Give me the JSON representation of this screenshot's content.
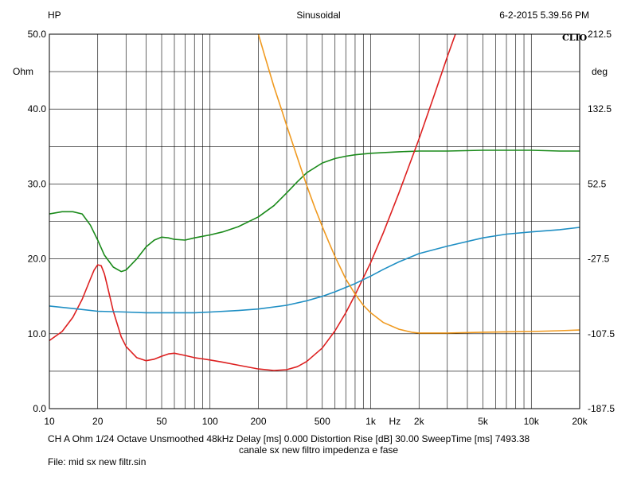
{
  "header": {
    "left": "HP",
    "center": "Sinusoidal",
    "right": "6-2-2015 5.39.56 PM",
    "brand": "CLIO"
  },
  "footer": {
    "info": "CH A   Ohm    1/24 Octave    Unsmoothed    48kHz    Delay [ms] 0.000    Distortion Rise [dB] 30.00    SweepTime [ms] 7493.38",
    "caption": "canale sx new filtro impedenza e fase",
    "file": "File: mid sx new filtr.sin"
  },
  "colors": {
    "background": "#ffffff",
    "grid": "#000000",
    "green": "#1a8a1a",
    "red": "#dd2020",
    "blue": "#1f8fc4",
    "orange": "#f09a20"
  },
  "chart_data": {
    "type": "line",
    "x_scale": "log",
    "xlim": [
      10,
      20000
    ],
    "x_ticks": [
      {
        "value": 10,
        "label": "10"
      },
      {
        "value": 20,
        "label": "20"
      },
      {
        "value": 50,
        "label": "50"
      },
      {
        "value": 100,
        "label": "100"
      },
      {
        "value": 200,
        "label": "200"
      },
      {
        "value": 500,
        "label": "500"
      },
      {
        "value": 1000,
        "label": "1k"
      },
      {
        "value": 2000,
        "label": "2k"
      },
      {
        "value": 5000,
        "label": "5k"
      },
      {
        "value": 10000,
        "label": "10k"
      },
      {
        "value": 20000,
        "label": "20k"
      }
    ],
    "x_unit": "Hz",
    "y_left": {
      "unit": "Ohm",
      "range": [
        0,
        50
      ],
      "ticks": [
        "0.0",
        "10.0",
        "20.0",
        "30.0",
        "40.0",
        "50.0"
      ]
    },
    "y_right": {
      "unit": "deg",
      "range": [
        -187.5,
        212.5
      ],
      "ticks": [
        "-187.5",
        "-107.5",
        "-27.5",
        "52.5",
        "132.5",
        "212.5"
      ]
    },
    "grid": true,
    "series": [
      {
        "axis": "left",
        "color": "#1a8a1a",
        "points": [
          [
            10,
            26
          ],
          [
            12,
            26.3
          ],
          [
            14,
            26.3
          ],
          [
            16,
            26
          ],
          [
            18,
            24.5
          ],
          [
            20,
            22.5
          ],
          [
            22,
            20.5
          ],
          [
            25,
            18.9
          ],
          [
            28,
            18.3
          ],
          [
            30,
            18.5
          ],
          [
            35,
            20
          ],
          [
            40,
            21.6
          ],
          [
            45,
            22.5
          ],
          [
            50,
            22.9
          ],
          [
            55,
            22.8
          ],
          [
            60,
            22.6
          ],
          [
            70,
            22.5
          ],
          [
            80,
            22.8
          ],
          [
            100,
            23.2
          ],
          [
            120,
            23.6
          ],
          [
            150,
            24.3
          ],
          [
            200,
            25.6
          ],
          [
            250,
            27.1
          ],
          [
            300,
            28.8
          ],
          [
            350,
            30.3
          ],
          [
            400,
            31.5
          ],
          [
            500,
            32.8
          ],
          [
            600,
            33.4
          ],
          [
            700,
            33.7
          ],
          [
            800,
            33.9
          ],
          [
            1000,
            34.1
          ],
          [
            1500,
            34.3
          ],
          [
            2000,
            34.4
          ],
          [
            3000,
            34.4
          ],
          [
            5000,
            34.5
          ],
          [
            10000,
            34.5
          ],
          [
            15000,
            34.4
          ],
          [
            20000,
            34.4
          ]
        ]
      },
      {
        "axis": "left",
        "color": "#dd2020",
        "points": [
          [
            10,
            9.1
          ],
          [
            12,
            10.3
          ],
          [
            14,
            12.2
          ],
          [
            16,
            14.6
          ],
          [
            18,
            17.3
          ],
          [
            19,
            18.5
          ],
          [
            20,
            19.2
          ],
          [
            21,
            19.1
          ],
          [
            22,
            18
          ],
          [
            23,
            16.3
          ],
          [
            25,
            13
          ],
          [
            28,
            9.6
          ],
          [
            30,
            8.3
          ],
          [
            35,
            6.8
          ],
          [
            40,
            6.4
          ],
          [
            45,
            6.6
          ],
          [
            50,
            7
          ],
          [
            55,
            7.3
          ],
          [
            60,
            7.4
          ],
          [
            70,
            7.1
          ],
          [
            80,
            6.8
          ],
          [
            100,
            6.5
          ],
          [
            120,
            6.2
          ],
          [
            150,
            5.8
          ],
          [
            200,
            5.3
          ],
          [
            250,
            5.1
          ],
          [
            300,
            5.2
          ],
          [
            350,
            5.6
          ],
          [
            400,
            6.3
          ],
          [
            500,
            8.1
          ],
          [
            600,
            10.4
          ],
          [
            700,
            12.8
          ],
          [
            800,
            15.2
          ],
          [
            1000,
            19.5
          ],
          [
            1200,
            23.5
          ],
          [
            1500,
            28.8
          ],
          [
            2000,
            36
          ],
          [
            2500,
            42
          ],
          [
            3000,
            47
          ],
          [
            3500,
            51
          ]
        ]
      },
      {
        "axis": "left",
        "color": "#1f8fc4",
        "points": [
          [
            10,
            13.7
          ],
          [
            15,
            13.3
          ],
          [
            20,
            13
          ],
          [
            30,
            12.9
          ],
          [
            40,
            12.8
          ],
          [
            60,
            12.8
          ],
          [
            80,
            12.8
          ],
          [
            100,
            12.9
          ],
          [
            150,
            13.1
          ],
          [
            200,
            13.3
          ],
          [
            300,
            13.8
          ],
          [
            400,
            14.4
          ],
          [
            500,
            15
          ],
          [
            600,
            15.6
          ],
          [
            800,
            16.7
          ],
          [
            1000,
            17.7
          ],
          [
            1200,
            18.6
          ],
          [
            1500,
            19.6
          ],
          [
            2000,
            20.7
          ],
          [
            3000,
            21.7
          ],
          [
            5000,
            22.8
          ],
          [
            7000,
            23.3
          ],
          [
            10000,
            23.6
          ],
          [
            15000,
            23.9
          ],
          [
            20000,
            24.2
          ]
        ]
      },
      {
        "axis": "left",
        "color": "#f09a20",
        "points": [
          [
            200,
            50
          ],
          [
            220,
            47
          ],
          [
            250,
            43
          ],
          [
            280,
            39.8
          ],
          [
            300,
            37.8
          ],
          [
            350,
            33.5
          ],
          [
            400,
            29.8
          ],
          [
            450,
            26.8
          ],
          [
            500,
            24.3
          ],
          [
            550,
            22.2
          ],
          [
            600,
            20.3
          ],
          [
            700,
            17.3
          ],
          [
            800,
            15.3
          ],
          [
            900,
            13.8
          ],
          [
            1000,
            12.8
          ],
          [
            1200,
            11.5
          ],
          [
            1500,
            10.6
          ],
          [
            1800,
            10.2
          ],
          [
            2000,
            10.1
          ],
          [
            3000,
            10.1
          ],
          [
            5000,
            10.2
          ],
          [
            10000,
            10.3
          ],
          [
            15000,
            10.4
          ],
          [
            20000,
            10.5
          ]
        ]
      }
    ]
  }
}
